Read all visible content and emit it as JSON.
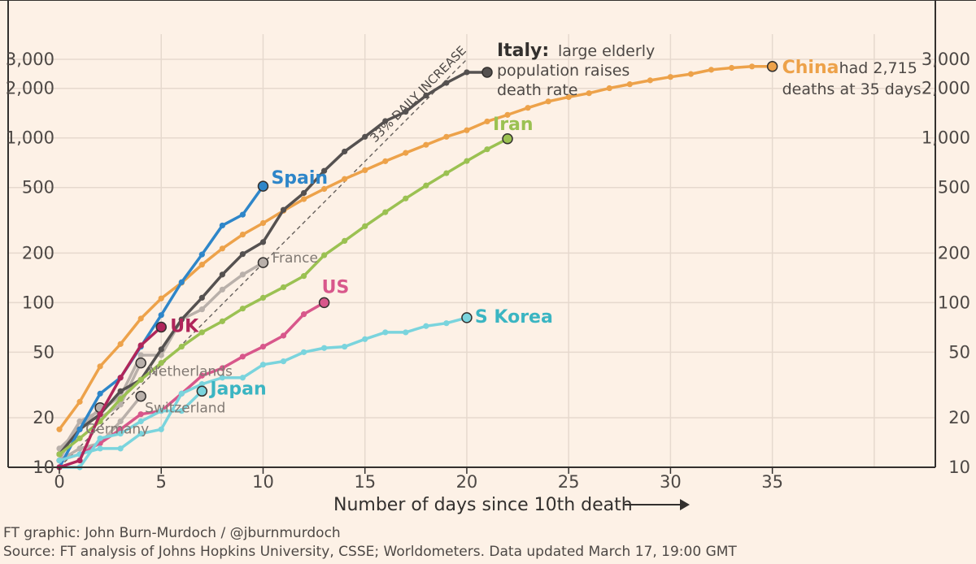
{
  "chart_data": {
    "type": "line",
    "xlabel": "Number of days since 10th death",
    "x_ticks": [
      0,
      5,
      10,
      15,
      20,
      25,
      30,
      35
    ],
    "y_ticks": [
      10,
      20,
      50,
      100,
      200,
      500,
      1000,
      2000,
      3000
    ],
    "y_tick_labels": [
      "10",
      "20",
      "50",
      "100",
      "200",
      "500",
      "1,000",
      "2,000",
      "3,000"
    ],
    "y_scale": "log",
    "xlim": [
      0,
      43
    ],
    "ylim": [
      10,
      3400
    ],
    "grid": true,
    "colors": {
      "Spain": "#2e86c9",
      "Italy": "#555150",
      "China": "#eda24a",
      "Iran": "#9bc152",
      "US": "#d8578b",
      "S Korea": "#7ad4dd",
      "Japan": "#7ad4dd",
      "UK": "#b0255a",
      "France": "#b9b0aa",
      "Netherlands": "#b9b0aa",
      "Switzerland": "#b9b0aa",
      "Germany": "#b9b0aa"
    },
    "series": [
      {
        "name": "France",
        "x": [
          0,
          1,
          2,
          3,
          4,
          5,
          6,
          7,
          8,
          9,
          10
        ],
        "values": [
          11,
          19,
          22,
          27,
          48,
          48,
          79,
          91,
          120,
          148,
          175
        ]
      },
      {
        "name": "Netherlands",
        "x": [
          0,
          1,
          2,
          3,
          4
        ],
        "values": [
          12,
          19,
          20,
          24,
          43
        ]
      },
      {
        "name": "Switzerland",
        "x": [
          0,
          1,
          2,
          3,
          4
        ],
        "values": [
          11,
          13,
          14,
          19,
          27
        ]
      },
      {
        "name": "Germany",
        "x": [
          0,
          1,
          2
        ],
        "values": [
          13,
          17,
          23
        ]
      },
      {
        "name": "China",
        "x": [
          0,
          1,
          2,
          3,
          4,
          5,
          6,
          7,
          8,
          9,
          10,
          11,
          12,
          13,
          14,
          15,
          16,
          17,
          18,
          19,
          20,
          21,
          22,
          23,
          24,
          25,
          26,
          27,
          28,
          29,
          30,
          31,
          32,
          33,
          34,
          35
        ],
        "values": [
          17,
          25,
          41,
          56,
          80,
          106,
          132,
          170,
          213,
          259,
          304,
          361,
          425,
          490,
          563,
          637,
          722,
          811,
          908,
          1016,
          1113,
          1259,
          1380,
          1523,
          1665,
          1770,
          1868,
          2004,
          2118,
          2236,
          2345,
          2442,
          2592,
          2663,
          2715,
          2715
        ]
      },
      {
        "name": "Italy",
        "x": [
          0,
          1,
          2,
          3,
          4,
          5,
          6,
          7,
          8,
          9,
          10,
          11,
          12,
          13,
          14,
          15,
          16,
          17,
          18,
          19,
          20,
          21
        ],
        "values": [
          12,
          17,
          21,
          29,
          34,
          52,
          79,
          107,
          148,
          197,
          233,
          366,
          463,
          631,
          827,
          1016,
          1266,
          1441,
          1809,
          2158,
          2503,
          2503
        ]
      },
      {
        "name": "Spain",
        "x": [
          0,
          1,
          2,
          3,
          4,
          5,
          6,
          7,
          8,
          9,
          10
        ],
        "values": [
          10,
          17,
          28,
          35,
          54,
          84,
          133,
          196,
          294,
          342,
          509
        ]
      },
      {
        "name": "Iran",
        "x": [
          0,
          1,
          2,
          3,
          4,
          5,
          6,
          7,
          8,
          9,
          10,
          11,
          12,
          13,
          14,
          15,
          16,
          17,
          18,
          19,
          20,
          21,
          22
        ],
        "values": [
          12,
          15,
          19,
          26,
          34,
          43,
          54,
          66,
          77,
          92,
          107,
          124,
          145,
          194,
          237,
          291,
          354,
          429,
          514,
          611,
          724,
          853,
          988
        ]
      },
      {
        "name": "US",
        "x": [
          0,
          1,
          2,
          3,
          4,
          5,
          6,
          7,
          8,
          9,
          10,
          11,
          12,
          13
        ],
        "values": [
          11,
          12,
          14,
          17,
          21,
          22,
          28,
          36,
          40,
          47,
          54,
          63,
          85,
          100
        ]
      },
      {
        "name": "S Korea",
        "x": [
          0,
          1,
          2,
          3,
          4,
          5,
          6,
          7,
          8,
          9,
          10,
          11,
          12,
          13,
          14,
          15,
          16,
          17,
          18,
          19,
          20
        ],
        "values": [
          11,
          12,
          13,
          13,
          16,
          17,
          28,
          32,
          35,
          35,
          42,
          44,
          50,
          53,
          54,
          60,
          66,
          66,
          72,
          75,
          81
        ]
      },
      {
        "name": "Japan",
        "x": [
          0,
          1,
          2,
          3,
          4,
          5,
          6,
          7
        ],
        "values": [
          10,
          10,
          15,
          16,
          19,
          22,
          22,
          29
        ]
      },
      {
        "name": "UK",
        "x": [
          0,
          1,
          2,
          3,
          4,
          5
        ],
        "values": [
          10,
          11,
          21,
          35,
          55,
          71
        ]
      }
    ],
    "labels": {
      "Spain": "Spain",
      "Italy": "Italy:",
      "Italy_note": [
        "large elderly",
        "population raises",
        "death rate"
      ],
      "China": "China",
      "China_note": [
        "had 2,715",
        "deaths at 35 days"
      ],
      "Iran": "Iran",
      "US": "US",
      "S Korea": "S Korea",
      "Japan": "Japan",
      "UK": "UK",
      "France": "France",
      "Netherlands": "Netherlands",
      "Switzerland": "Switzerland",
      "Germany": "Germany"
    },
    "reference_line": {
      "label": "33% DAILY INCREASE",
      "daily_growth": 0.33,
      "start": 10
    }
  },
  "credits": {
    "line1": "FT graphic: John Burn-Murdoch / @jburnmurdoch",
    "line2": "Source: FT analysis of Johns Hopkins University, CSSE; Worldometers. Data updated March 17, 19:00 GMT"
  }
}
